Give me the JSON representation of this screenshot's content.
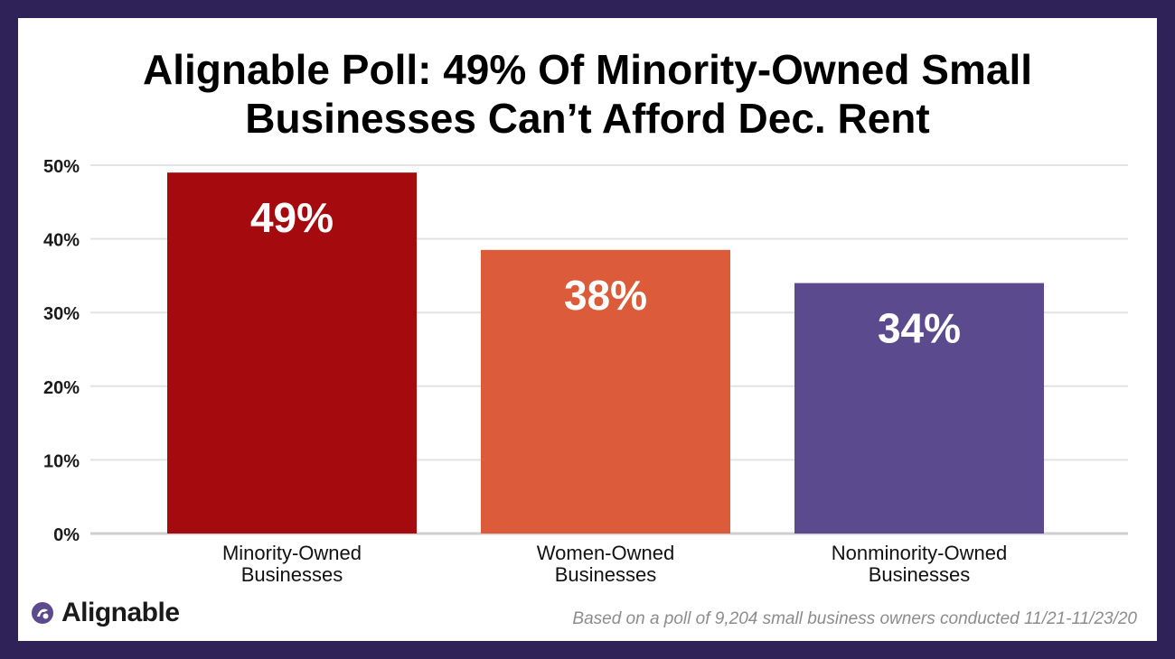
{
  "colors": {
    "frame": "#2e2259",
    "grid": "#e3e3e3",
    "minority": "#a50b0e",
    "women": "#dc5b3b",
    "nonminority": "#5b4a8e"
  },
  "chart_data": {
    "type": "bar",
    "title_lines": [
      "Alignable Poll: 49% Of Minority-Owned Small",
      "Businesses Can’t Afford Dec. Rent"
    ],
    "categories": [
      [
        "Minority-Owned",
        "Businesses"
      ],
      [
        "Women-Owned",
        "Businesses"
      ],
      [
        "Nonminority-Owned",
        "Businesses"
      ]
    ],
    "values": [
      49,
      38.5,
      34
    ],
    "value_labels": [
      "49%",
      "38%",
      "34%"
    ],
    "yticks": [
      0,
      10,
      20,
      30,
      40,
      50
    ],
    "ytick_labels": [
      "0%",
      "10%",
      "20%",
      "30%",
      "40%",
      "50%"
    ],
    "ylim": [
      0,
      50
    ],
    "grid": true
  },
  "branding": {
    "name": "Alignable",
    "icon": "alignable-logo-icon"
  },
  "footnote": "Based on a poll of 9,204 small business owners conducted 11/21-11/23/20"
}
